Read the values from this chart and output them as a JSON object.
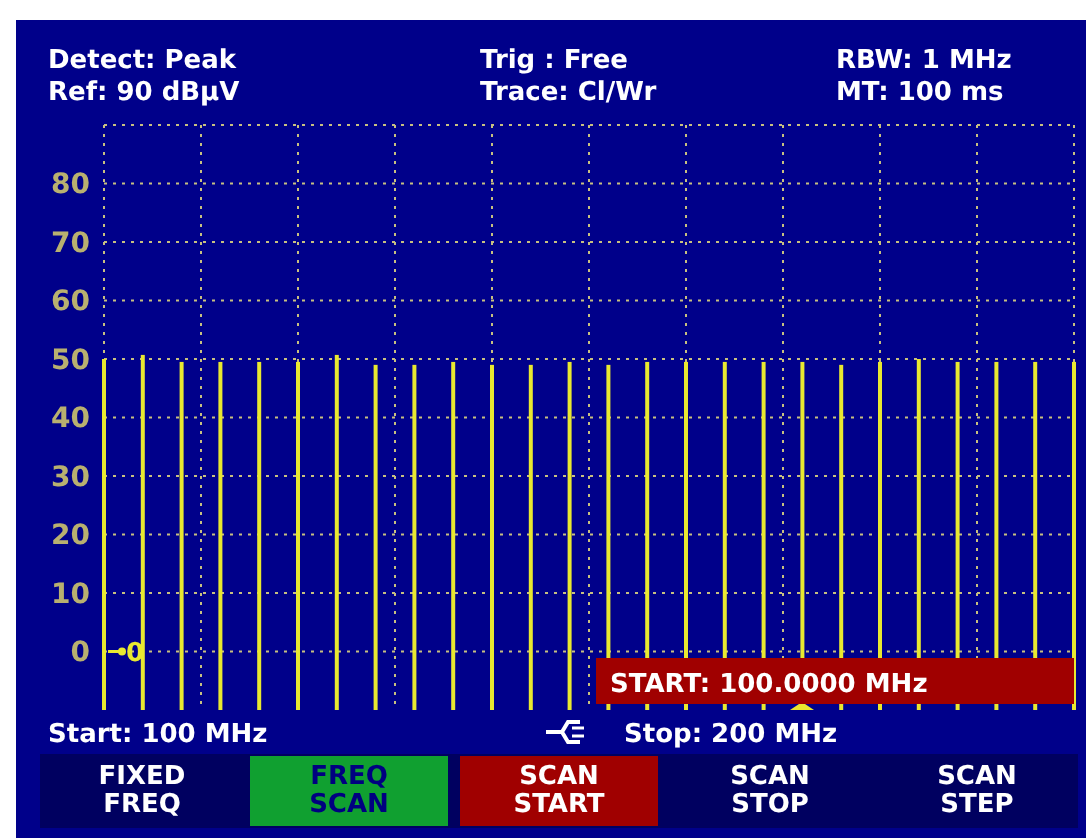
{
  "chart_data": {
    "type": "bar",
    "categories": [
      null,
      null,
      null,
      null,
      null,
      null,
      null,
      null,
      null,
      null,
      null,
      null,
      null,
      null,
      null,
      null,
      null,
      null,
      null,
      null,
      null,
      null,
      null,
      null,
      null,
      null
    ],
    "base": [
      -10,
      -10,
      -10,
      -10,
      -10,
      -10,
      -10,
      -10,
      -10,
      -10,
      -10,
      -10,
      -10,
      -10,
      -10,
      -10,
      -10,
      -10,
      -10,
      -10,
      -10,
      -10,
      -10,
      -10,
      -10,
      -10
    ],
    "values": [
      60,
      60.7,
      59.5,
      59.5,
      59.5,
      59.5,
      60.7,
      59,
      59,
      59.5,
      59,
      59,
      59.5,
      59,
      59.5,
      59.5,
      59.5,
      59.5,
      59.5,
      59,
      59.5,
      60,
      59.5,
      59.5,
      59.5,
      59.5
    ],
    "color": "#e8e830",
    "ylim": [
      -10,
      90
    ],
    "yticks": [
      0,
      10,
      20,
      30,
      40,
      50,
      60,
      70,
      80,
      {
        "value": 90,
        "label": null
      }
    ],
    "grid": true,
    "tick_labels": "y",
    "annotations": [
      "Detect: Peak",
      "Ref: 90 dBµV",
      "Trig  : Free",
      "Trace: Cl/Wr",
      "RBW: 1 MHz",
      "MT: 100 ms",
      "Start: 100 MHz",
      "Stop: 200 MHz",
      "START: 100.0000 MHz",
      "FIXED FREQ",
      "FREQ SCAN",
      "SCAN START",
      "SCAN STOP",
      "SCAN STEP",
      "0"
    ]
  }
}
